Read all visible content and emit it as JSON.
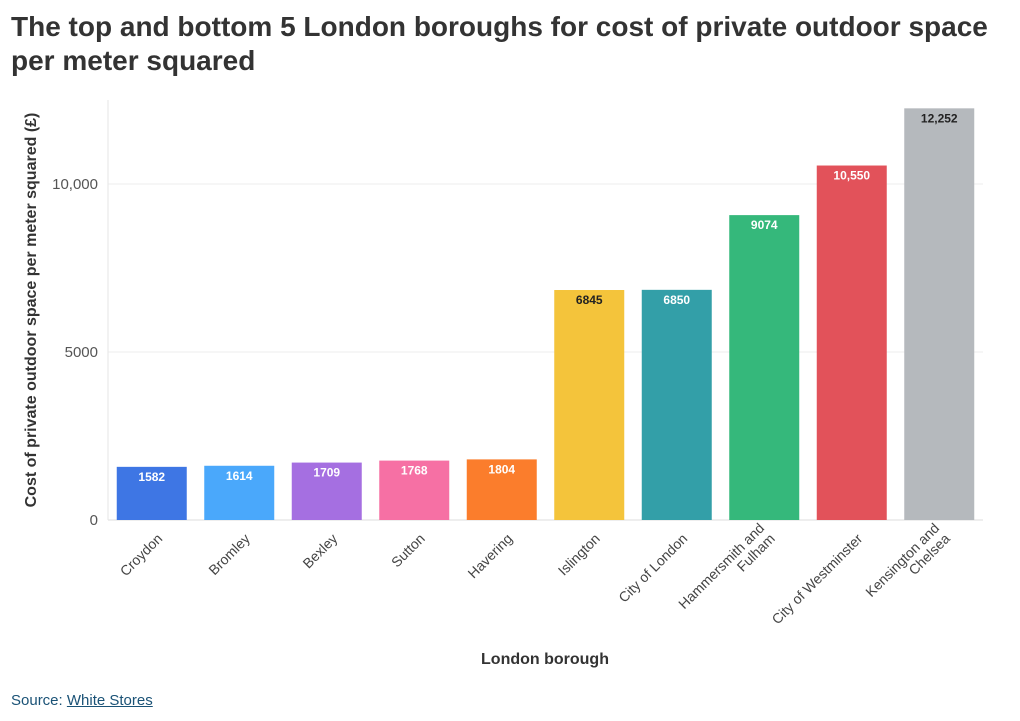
{
  "title": "The top and bottom 5 London boroughs for cost of private outdoor space per meter squared",
  "source": {
    "prefix": "Source: ",
    "link_text": "White Stores"
  },
  "chart_data": {
    "type": "bar",
    "title": "The top and bottom 5 London boroughs for cost of private outdoor space per meter squared",
    "xlabel": "London borough",
    "ylabel": "Cost of private outdoor space per meter squared (£)",
    "ylim": [
      0,
      12500
    ],
    "yticks": [
      0,
      5000,
      10000
    ],
    "ytick_labels": [
      "0",
      "5000",
      "10,000"
    ],
    "grid": true,
    "categories": [
      [
        "Croydon"
      ],
      [
        "Bromley"
      ],
      [
        "Bexley"
      ],
      [
        "Sutton"
      ],
      [
        "Havering"
      ],
      [
        "Islington"
      ],
      [
        "City of London"
      ],
      [
        "Hammersmith and",
        "Fulham"
      ],
      [
        "City of Westminster"
      ],
      [
        "Kensington and",
        "Chelsea"
      ]
    ],
    "values": [
      1582,
      1614,
      1709,
      1768,
      1804,
      6845,
      6850,
      9074,
      10550,
      12252
    ],
    "data_labels": [
      "1582",
      "1614",
      "1709",
      "1768",
      "1804",
      "6845",
      "6850",
      "9074",
      "10,550",
      "12,252"
    ],
    "colors": [
      "#3e76e4",
      "#4aa8fb",
      "#a56fe1",
      "#f670a4",
      "#fb7d2c",
      "#f4c43b",
      "#339fa8",
      "#35b87b",
      "#e2525a",
      "#b5b9bd"
    ],
    "label_colors": [
      "#ffffff",
      "#ffffff",
      "#ffffff",
      "#ffffff",
      "#ffffff",
      "#222222",
      "#ffffff",
      "#ffffff",
      "#ffffff",
      "#222222"
    ]
  }
}
